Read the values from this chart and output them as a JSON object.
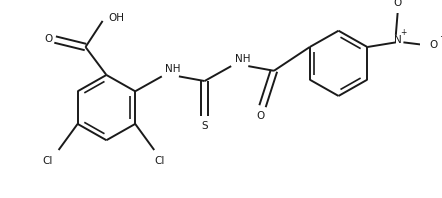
{
  "bg_color": "#ffffff",
  "line_color": "#1a1a1a",
  "line_width": 1.4,
  "font_size": 7.5,
  "figsize": [
    4.42,
    1.98
  ],
  "dpi": 100,
  "xlim": [
    0,
    442
  ],
  "ylim": [
    0,
    198
  ]
}
